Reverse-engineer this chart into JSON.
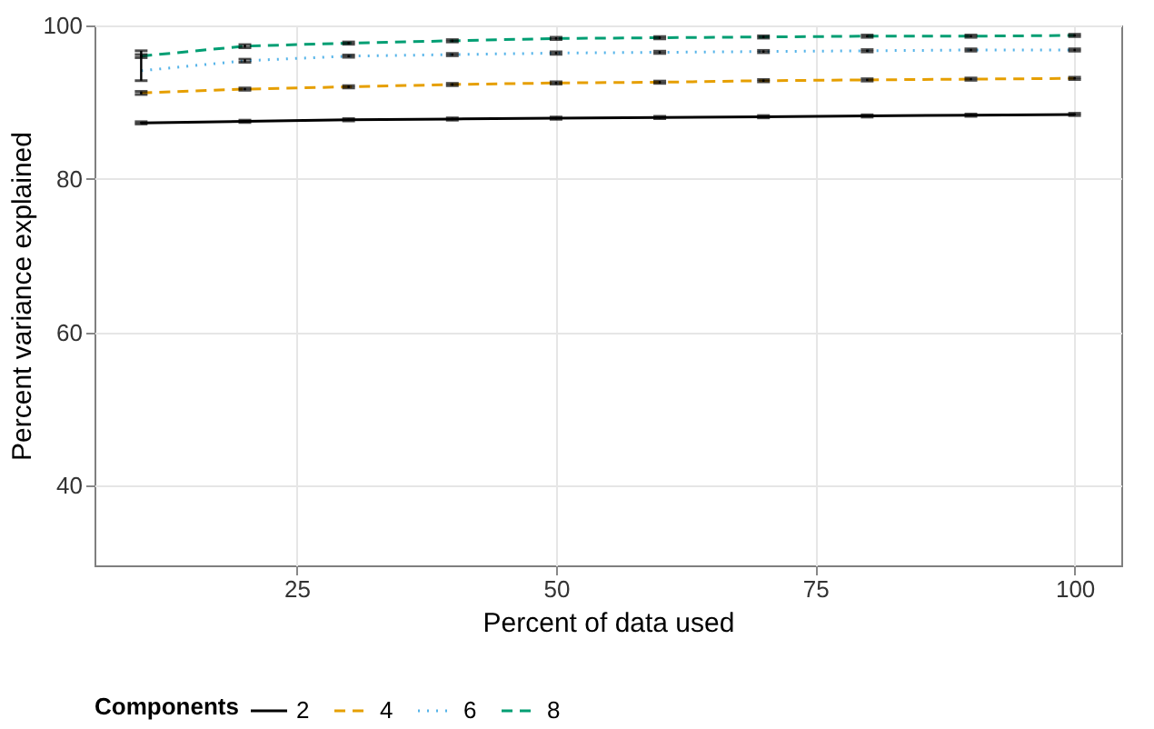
{
  "chart_data": {
    "type": "line",
    "xlabel": "Percent of data used",
    "ylabel": "Percent variance explained",
    "legend_title": "Components",
    "x": [
      10,
      20,
      30,
      40,
      50,
      60,
      70,
      80,
      90,
      100
    ],
    "series": [
      {
        "name": "2",
        "color": "#000000",
        "line_style": "solid",
        "values": [
          87.3,
          87.5,
          87.7,
          87.8,
          87.9,
          88.0,
          88.1,
          88.2,
          88.3,
          88.4
        ],
        "errors": [
          0.15,
          0.15,
          0.15,
          0.15,
          0.15,
          0.15,
          0.15,
          0.15,
          0.15,
          0.15
        ]
      },
      {
        "name": "4",
        "color": "#e69f00",
        "line_style": "dashed",
        "values": [
          91.2,
          91.7,
          92.0,
          92.3,
          92.5,
          92.6,
          92.8,
          92.9,
          93.0,
          93.1
        ],
        "errors": [
          0.2,
          0.15,
          0.15,
          0.15,
          0.15,
          0.15,
          0.15,
          0.15,
          0.15,
          0.15
        ]
      },
      {
        "name": "6",
        "color": "#56b4e9",
        "line_style": "dotted",
        "values": [
          94.1,
          95.4,
          96.0,
          96.2,
          96.4,
          96.5,
          96.6,
          96.7,
          96.8,
          96.8
        ],
        "errors": [
          [
            92.8,
            96.7
          ],
          0.2,
          0.15,
          0.15,
          0.15,
          0.15,
          0.15,
          0.15,
          0.15,
          0.15
        ]
      },
      {
        "name": "8",
        "color": "#009e73",
        "line_style": "dashed",
        "values": [
          96.0,
          97.3,
          97.7,
          98.0,
          98.3,
          98.4,
          98.5,
          98.6,
          98.6,
          98.7
        ],
        "errors": [
          0.2,
          0.2,
          0.15,
          0.15,
          0.15,
          0.15,
          0.15,
          0.15,
          0.15,
          0.15
        ]
      }
    ],
    "xlim": [
      5.5,
      104.5
    ],
    "ylim": [
      29.6,
      100
    ],
    "xticks": [
      25,
      50,
      75,
      100
    ],
    "yticks": [
      40,
      60,
      80,
      100
    ],
    "grid": true,
    "legend": "bottom",
    "marker": "none"
  }
}
